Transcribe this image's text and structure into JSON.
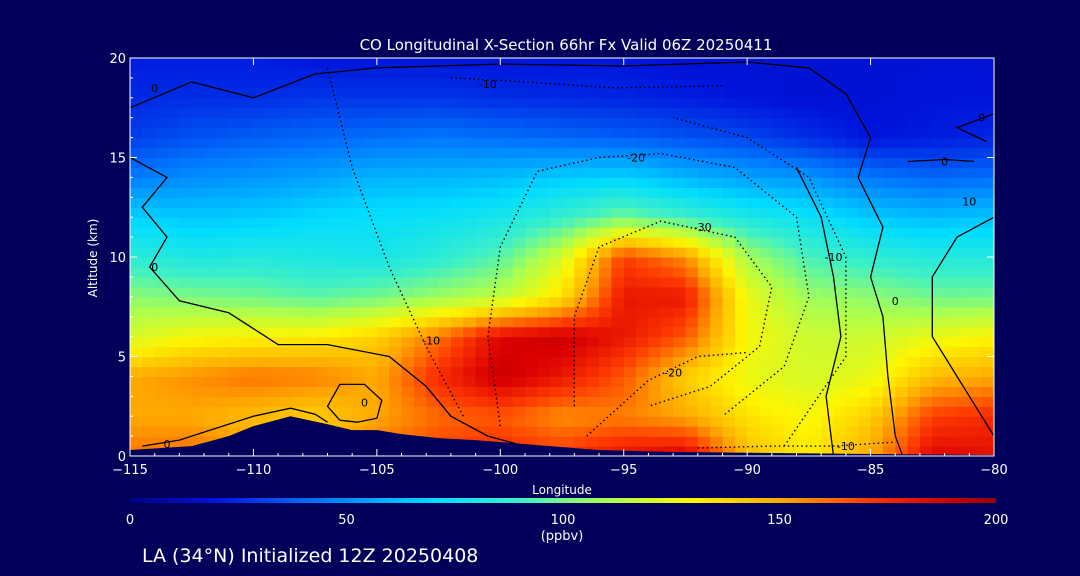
{
  "chart_data": {
    "type": "heatmap",
    "title": "CO Longitudinal X-Section 66hr  Fx Valid 06Z 20250411",
    "xlabel": "Longitude",
    "ylabel": "Altitude (km)",
    "xlim": [
      -115,
      -80
    ],
    "ylim": [
      0,
      20
    ],
    "x_ticks": [
      -115,
      -110,
      -105,
      -100,
      -95,
      -90,
      -85,
      -80
    ],
    "x_tick_labels": [
      "−115",
      "−110",
      "−105",
      "−100",
      "−95",
      "−90",
      "−85",
      "−80"
    ],
    "y_ticks": [
      0,
      5,
      10,
      15,
      20
    ],
    "y_tick_labels": [
      "0",
      "5",
      "10",
      "15",
      "20"
    ],
    "colorbar": {
      "label": "(ppbv)",
      "range": [
        0,
        200
      ],
      "ticks": [
        0,
        50,
        100,
        150,
        200
      ],
      "tick_labels": [
        "0",
        "50",
        "100",
        "150",
        "200"
      ]
    },
    "x": [
      -115,
      -112.5,
      -110,
      -107.5,
      -105,
      -102.5,
      -100,
      -97.5,
      -95,
      -92.5,
      -90,
      -87.5,
      -85,
      -82.5,
      -80
    ],
    "y": [
      0,
      2,
      4,
      6,
      8,
      10,
      12,
      14,
      16,
      18,
      20
    ],
    "z": [
      [
        160,
        162,
        152,
        150,
        162,
        170,
        175,
        172,
        182,
        188,
        145,
        132,
        150,
        185,
        182
      ],
      [
        150,
        150,
        145,
        140,
        150,
        162,
        165,
        155,
        158,
        150,
        135,
        128,
        140,
        170,
        175
      ],
      [
        150,
        155,
        160,
        158,
        150,
        175,
        190,
        180,
        165,
        140,
        125,
        120,
        125,
        145,
        150
      ],
      [
        120,
        128,
        130,
        132,
        140,
        160,
        185,
        190,
        180,
        165,
        128,
        118,
        118,
        125,
        130
      ],
      [
        105,
        102,
        100,
        96,
        100,
        108,
        115,
        135,
        180,
        180,
        125,
        108,
        105,
        100,
        100
      ],
      [
        85,
        80,
        82,
        80,
        78,
        85,
        95,
        120,
        170,
        155,
        110,
        92,
        86,
        82,
        82
      ],
      [
        68,
        65,
        66,
        70,
        72,
        74,
        78,
        88,
        100,
        90,
        80,
        74,
        65,
        62,
        64
      ],
      [
        45,
        50,
        52,
        55,
        60,
        60,
        62,
        66,
        68,
        60,
        55,
        52,
        44,
        40,
        42
      ],
      [
        30,
        35,
        38,
        40,
        42,
        44,
        42,
        40,
        38,
        35,
        32,
        26,
        20,
        22,
        24
      ],
      [
        25,
        26,
        26,
        28,
        28,
        28,
        26,
        25,
        24,
        22,
        20,
        18,
        18,
        20,
        20
      ],
      [
        22,
        22,
        22,
        20,
        20,
        20,
        20,
        20,
        20,
        18,
        18,
        18,
        18,
        18,
        18
      ]
    ],
    "terrain_km": [
      [
        -115,
        0.3
      ],
      [
        -112.5,
        0.5
      ],
      [
        -111,
        1.0
      ],
      [
        -110,
        1.5
      ],
      [
        -108.5,
        2.0
      ],
      [
        -107,
        1.6
      ],
      [
        -106,
        1.3
      ],
      [
        -105,
        1.3
      ],
      [
        -104,
        1.1
      ],
      [
        -102.5,
        0.9
      ],
      [
        -101,
        0.8
      ],
      [
        -100,
        0.7
      ],
      [
        -98,
        0.5
      ],
      [
        -96,
        0.3
      ],
      [
        -93,
        0.2
      ],
      [
        -85,
        0.1
      ],
      [
        -80,
        0.05
      ]
    ],
    "contours": {
      "solid": [
        {
          "label": "0",
          "label_at": [
            -114,
            18.5
          ],
          "points": [
            [
              -115,
              17.5
            ],
            [
              -112.5,
              18.8
            ],
            [
              -110,
              18.0
            ],
            [
              -107.5,
              19.2
            ],
            [
              -105,
              19.5
            ],
            [
              -100,
              19.7
            ],
            [
              -95,
              19.6
            ],
            [
              -90,
              19.8
            ],
            [
              -87.5,
              19.5
            ],
            [
              -86,
              18.2
            ],
            [
              -85,
              16.0
            ],
            [
              -85.5,
              14.0
            ],
            [
              -84.5,
              11.5
            ],
            [
              -85,
              9.0
            ],
            [
              -84.5,
              7.0
            ],
            [
              -84.3,
              4.0
            ],
            [
              -84,
              1.0
            ],
            [
              -83.7,
              0
            ]
          ]
        },
        {
          "label": "0",
          "label_at": [
            -114,
            9.5
          ],
          "points": [
            [
              -115,
              15.0
            ],
            [
              -113.5,
              14.0
            ],
            [
              -114.5,
              12.5
            ],
            [
              -113.5,
              11.0
            ],
            [
              -114.2,
              9.5
            ],
            [
              -113.0,
              7.8
            ],
            [
              -111.0,
              7.2
            ],
            [
              -109.0,
              5.6
            ],
            [
              -107,
              5.6
            ],
            [
              -104.5,
              5.0
            ],
            [
              -103.0,
              3.5
            ],
            [
              -102.0,
              2.0
            ],
            [
              -100.5,
              1.0
            ],
            [
              -99,
              0.5
            ]
          ]
        },
        {
          "label": "0",
          "label_at": [
            -113.5,
            0.6
          ],
          "points": [
            [
              -114.5,
              0.5
            ],
            [
              -113,
              0.8
            ],
            [
              -111.5,
              1.4
            ],
            [
              -110,
              2.0
            ],
            [
              -108.5,
              2.4
            ],
            [
              -107.5,
              2.1
            ],
            [
              -107,
              1.7
            ]
          ]
        },
        {
          "label": "0",
          "label_at": [
            -105.5,
            2.7
          ],
          "points": [
            [
              -106.5,
              1.8
            ],
            [
              -107,
              2.5
            ],
            [
              -106.5,
              3.6
            ],
            [
              -105.5,
              3.6
            ],
            [
              -104.8,
              2.8
            ],
            [
              -105,
              1.9
            ],
            [
              -105.8,
              1.7
            ],
            [
              -106.5,
              1.8
            ]
          ]
        },
        {
          "label": "0",
          "label_at": [
            -84,
            7.8
          ],
          "points": [
            [
              -86.5,
              0
            ],
            [
              -86.8,
              3.0
            ],
            [
              -86.2,
              6.0
            ],
            [
              -86.5,
              9.0
            ],
            [
              -87.0,
              12.0
            ],
            [
              -88.0,
              14.5
            ]
          ]
        },
        {
          "label": "10",
          "label_at": [
            -81,
            12.8
          ],
          "points": [
            [
              -80,
              12.0
            ],
            [
              -81.5,
              11.0
            ],
            [
              -82.5,
              9.0
            ],
            [
              -82.5,
              6.0
            ],
            [
              -81.5,
              4.0
            ],
            [
              -80.5,
              2.0
            ],
            [
              -80,
              1.0
            ]
          ]
        },
        {
          "label": "0",
          "label_at": [
            -82,
            14.8
          ],
          "points": [
            [
              -83.5,
              14.8
            ],
            [
              -82.0,
              14.9
            ],
            [
              -80.8,
              14.8
            ]
          ]
        },
        {
          "label": "0",
          "label_at": [
            -80.5,
            17
          ],
          "points": [
            [
              -80,
              17.2
            ],
            [
              -81.5,
              16.5
            ],
            [
              -80.3,
              15.8
            ]
          ]
        }
      ],
      "dotted": [
        {
          "label": "-10",
          "label_at": [
            -102.8,
            5.8
          ],
          "points": [
            [
              -101.5,
              2.0
            ],
            [
              -103.0,
              5.5
            ],
            [
              -104.5,
              9.5
            ],
            [
              -106.0,
              14.5
            ],
            [
              -107.0,
              19.5
            ]
          ]
        },
        {
          "label": "-10",
          "label_at": [
            -100.5,
            18.7
          ],
          "points": [
            [
              -102.0,
              19.0
            ],
            [
              -99.0,
              18.8
            ],
            [
              -95.5,
              18.5
            ],
            [
              -91.0,
              18.6
            ]
          ]
        },
        {
          "label": "-20",
          "label_at": [
            -94.5,
            15.0
          ],
          "points": [
            [
              -100.0,
              1.5
            ],
            [
              -100.5,
              6.0
            ],
            [
              -100.0,
              10.5
            ],
            [
              -98.5,
              14.3
            ],
            [
              -96.0,
              15.0
            ],
            [
              -93.5,
              15.2
            ],
            [
              -90.5,
              14.5
            ],
            [
              -88.0,
              12.0
            ],
            [
              -87.5,
              8.0
            ],
            [
              -88.5,
              4.5
            ],
            [
              -91.0,
              2.0
            ]
          ]
        },
        {
          "label": "-30",
          "label_at": [
            -91.8,
            11.5
          ],
          "points": [
            [
              -97.0,
              2.5
            ],
            [
              -97.0,
              7.0
            ],
            [
              -96.0,
              10.5
            ],
            [
              -93.5,
              11.8
            ],
            [
              -90.5,
              11.0
            ],
            [
              -89.0,
              8.5
            ],
            [
              -89.5,
              5.5
            ],
            [
              -91.5,
              3.5
            ],
            [
              -94.0,
              2.5
            ]
          ]
        },
        {
          "label": "-20",
          "label_at": [
            -93,
            4.2
          ],
          "points": [
            [
              -96.5,
              1.0
            ],
            [
              -94.0,
              3.8
            ],
            [
              -92.0,
              5.0
            ],
            [
              -90.0,
              5.2
            ]
          ]
        },
        {
          "label": "-10",
          "label_at": [
            -86.5,
            10.0
          ],
          "points": [
            [
              -88.5,
              0.5
            ],
            [
              -86.0,
              5.0
            ],
            [
              -86.0,
              10.0
            ],
            [
              -87.5,
              14.0
            ],
            [
              -90.0,
              16.0
            ],
            [
              -93.0,
              17.0
            ]
          ]
        },
        {
          "label": "-10",
          "label_at": [
            -86,
            0.5
          ],
          "points": [
            [
              -92.0,
              0.4
            ],
            [
              -89.0,
              0.5
            ],
            [
              -86.5,
              0.5
            ],
            [
              -84.0,
              0.7
            ]
          ]
        }
      ]
    }
  },
  "footer": {
    "text": "LA (34°N) Initialized 12Z 20250408"
  }
}
